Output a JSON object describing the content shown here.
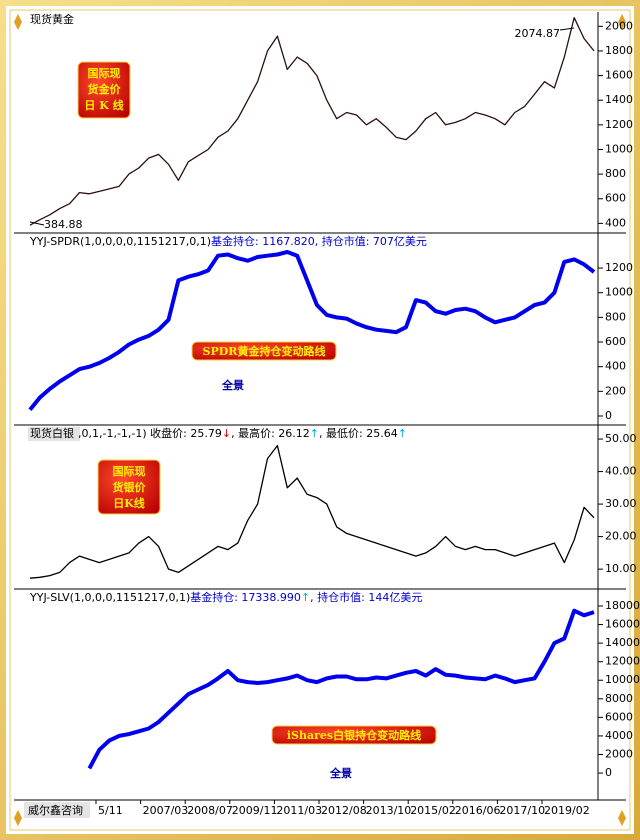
{
  "chart_data": [
    {
      "type": "line",
      "title": "现货黄金",
      "series": [
        {
          "color": "#2a1010",
          "values": [
            385,
            430,
            470,
            520,
            560,
            650,
            640,
            660,
            680,
            700,
            800,
            850,
            930,
            960,
            880,
            750,
            900,
            950,
            1000,
            1100,
            1150,
            1250,
            1400,
            1550,
            1800,
            1920,
            1650,
            1750,
            1700,
            1600,
            1400,
            1250,
            1300,
            1280,
            1200,
            1250,
            1180,
            1100,
            1080,
            1150,
            1250,
            1300,
            1200,
            1220,
            1250,
            1300,
            1280,
            1250,
            1200,
            1300,
            1350,
            1450,
            1550,
            1500,
            1750,
            2070,
            1900,
            1800
          ]
        }
      ],
      "ylim": [
        330,
        2100
      ],
      "yticks": [
        400,
        600,
        800,
        1000,
        1200,
        1400,
        1600,
        1800,
        2000
      ],
      "annotations": [
        "2074.87",
        "384.88"
      ],
      "badge": [
        "国际现",
        "货金价",
        "日 K 线"
      ]
    },
    {
      "type": "line",
      "header": [
        {
          "text": "YYJ-SPDR(1,0,0,0,0,1151217,0,1)",
          "color": "#000000"
        },
        {
          "text": "基金持仓: 1167.820, 持仓市值: 707亿美元",
          "color": "#0000cc"
        }
      ],
      "series": [
        {
          "color": "#0000ee",
          "values": [
            50,
            150,
            220,
            280,
            330,
            380,
            400,
            430,
            470,
            520,
            580,
            620,
            650,
            700,
            780,
            1100,
            1130,
            1150,
            1180,
            1300,
            1310,
            1280,
            1260,
            1290,
            1300,
            1310,
            1330,
            1300,
            1100,
            900,
            820,
            800,
            790,
            750,
            720,
            700,
            690,
            680,
            720,
            940,
            920,
            850,
            830,
            860,
            870,
            850,
            800,
            760,
            780,
            800,
            850,
            900,
            920,
            1000,
            1250,
            1270,
            1230,
            1167.82
          ]
        }
      ],
      "ylim": [
        -65,
        1460
      ],
      "yticks": [
        0,
        200,
        400,
        600,
        800,
        1000,
        1200
      ],
      "badge": [
        "SPDR黄金持仓变动路线"
      ],
      "note": "全景"
    },
    {
      "type": "line",
      "title": "现货白银",
      "header": [
        {
          "text": ",0,1,-1,-1,-1) 收盘价: 25.79",
          "color": "#000000"
        },
        {
          "text": "↓",
          "color": "#dd0000"
        },
        {
          "text": ", 最高价: 26.12",
          "color": "#000000"
        },
        {
          "text": "↑",
          "color": "#00aadd"
        },
        {
          "text": ", 最低价: 25.64",
          "color": "#000000"
        },
        {
          "text": "↑",
          "color": "#00aadd"
        }
      ],
      "series": [
        {
          "color": "#000000",
          "values": [
            7.2,
            7.5,
            8,
            9,
            12,
            14,
            13,
            12,
            13,
            14,
            15,
            18,
            20,
            17,
            10,
            9,
            11,
            13,
            15,
            17,
            16,
            18,
            25,
            30,
            44,
            48,
            35,
            38,
            33,
            32,
            30,
            23,
            21,
            20,
            19,
            18,
            17,
            16,
            15,
            14,
            15,
            17,
            20,
            17,
            16,
            17,
            16,
            16,
            15,
            14,
            15,
            16,
            17,
            18,
            12,
            19,
            29,
            25.79
          ]
        }
      ],
      "ylim": [
        4.2,
        53.4
      ],
      "yticks": [
        {
          "value": 10,
          "label": "10.00"
        },
        {
          "value": 20,
          "label": "20.00"
        },
        {
          "value": 30,
          "label": "30.00"
        },
        {
          "value": 40,
          "label": "40.00"
        },
        {
          "value": 50,
          "label": "50.00"
        }
      ],
      "badge": [
        "国际现",
        "货银价",
        "日K线"
      ]
    },
    {
      "type": "line",
      "header": [
        {
          "text": "YYJ-SLV(1,0,0,0,1151217,0,1)",
          "color": "#000000"
        },
        {
          "text": "基金持仓: 17338.990",
          "color": "#0000cc"
        },
        {
          "text": "↑",
          "color": "#00aadd"
        },
        {
          "text": ", 持仓市值: 144亿美元",
          "color": "#0000cc"
        }
      ],
      "series": [
        {
          "color": "#0000ee",
          "values": [
            null,
            null,
            null,
            null,
            null,
            null,
            500,
            2500,
            3500,
            4000,
            4200,
            4500,
            4800,
            5500,
            6500,
            7500,
            8500,
            9000,
            9500,
            10200,
            11000,
            10000,
            9800,
            9700,
            9800,
            10000,
            10200,
            10500,
            10000,
            9800,
            10200,
            10400,
            10400,
            10100,
            10100,
            10300,
            10200,
            10500,
            10800,
            11000,
            10500,
            11200,
            10600,
            10500,
            10300,
            10200,
            10100,
            10500,
            10200,
            9800,
            10000,
            10200,
            12000,
            14000,
            14500,
            17500,
            17000,
            17339
          ]
        }
      ],
      "ylim": [
        -2690,
        19510
      ],
      "yticks": [
        0,
        2000,
        4000,
        6000,
        8000,
        10000,
        12000,
        14000,
        16000,
        18000
      ],
      "badge": [
        "iShares白银持仓变动路线"
      ],
      "note": "全景"
    }
  ],
  "x_axis": {
    "labels": [
      "5/11",
      "2007/03",
      "2008/07",
      "2009/11",
      "2011/03",
      "2012/08",
      "2013/10",
      "2015/02",
      "2016/06",
      "2017/10",
      "2019/02"
    ]
  },
  "footer": "威尔鑫咨询"
}
